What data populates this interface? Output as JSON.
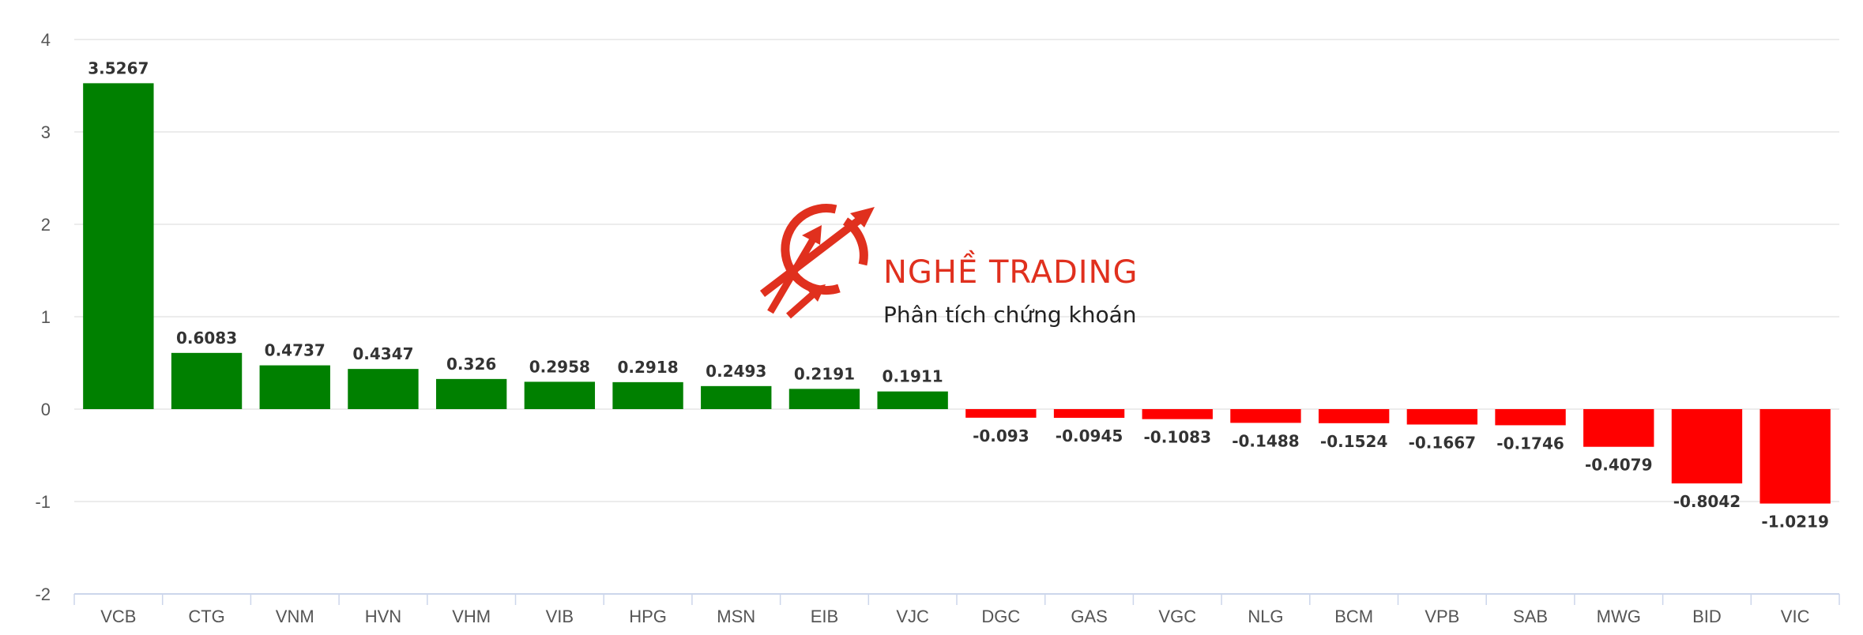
{
  "chart_data": {
    "type": "bar",
    "title": "",
    "xlabel": "",
    "ylabel": "",
    "ylim": [
      -2,
      4
    ],
    "yticks": [
      -2,
      -1,
      0,
      1,
      2,
      3,
      4
    ],
    "grid": true,
    "categories": [
      "VCB",
      "CTG",
      "VNM",
      "HVN",
      "VHM",
      "VIB",
      "HPG",
      "MSN",
      "EIB",
      "VJC",
      "DGC",
      "GAS",
      "VGC",
      "NLG",
      "BCM",
      "VPB",
      "SAB",
      "MWG",
      "BID",
      "VIC"
    ],
    "values": [
      3.5267,
      0.6083,
      0.4737,
      0.4347,
      0.326,
      0.2958,
      0.2918,
      0.2493,
      0.2191,
      0.1911,
      -0.093,
      -0.0945,
      -0.1083,
      -0.1488,
      -0.1524,
      -0.1667,
      -0.1746,
      -0.4079,
      -0.8042,
      -1.0219
    ],
    "data_labels": [
      "3.5267",
      "0.6083",
      "0.4737",
      "0.4347",
      "0.326",
      "0.2958",
      "0.2918",
      "0.2493",
      "0.2191",
      "0.1911",
      "-0.093",
      "-0.0945",
      "-0.1083",
      "-0.1488",
      "-0.1524",
      "-0.1667",
      "-0.1746",
      "-0.4079",
      "-0.8042",
      "-1.0219"
    ],
    "colors": {
      "positive": "#008000",
      "negative": "#ff0000",
      "grid": "#e6e6e6",
      "axis": "#ccd6eb"
    }
  },
  "watermark": {
    "title": "NGHỀ TRADING",
    "subtitle": "Phân tích chứng khoán",
    "color": "#e0301e",
    "icon": "trading-logo-icon"
  }
}
